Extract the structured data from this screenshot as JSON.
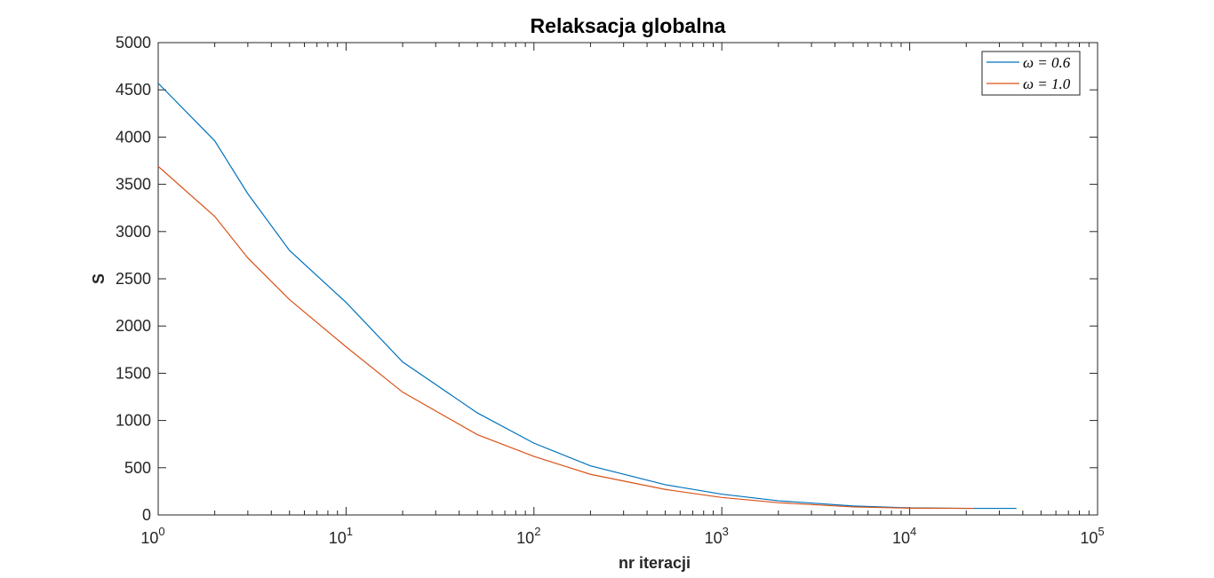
{
  "chart_data": {
    "type": "line",
    "title": "Relaksacja globalna",
    "xlabel": "nr iteracji",
    "ylabel": "S",
    "xscale": "log",
    "xlim": [
      1,
      100000
    ],
    "ylim": [
      0,
      5000
    ],
    "x_ticks": [
      {
        "value": 1,
        "base": "10",
        "exp": "0"
      },
      {
        "value": 10,
        "base": "10",
        "exp": "1"
      },
      {
        "value": 100,
        "base": "10",
        "exp": "2"
      },
      {
        "value": 1000,
        "base": "10",
        "exp": "3"
      },
      {
        "value": 10000,
        "base": "10",
        "exp": "4"
      },
      {
        "value": 100000,
        "base": "10",
        "exp": "5"
      }
    ],
    "y_ticks": [
      0,
      500,
      1000,
      1500,
      2000,
      2500,
      3000,
      3500,
      4000,
      4500,
      5000
    ],
    "grid": false,
    "legend_position": "top-right",
    "series": [
      {
        "name": "ω = 0.6",
        "color": "#0072BD",
        "x": [
          1,
          2,
          3,
          5,
          10,
          20,
          50,
          100,
          200,
          500,
          1000,
          2000,
          5000,
          10000,
          20000,
          37000
        ],
        "y": [
          4570,
          3960,
          3400,
          2800,
          2250,
          1620,
          1080,
          760,
          520,
          320,
          220,
          150,
          95,
          75,
          70,
          70
        ]
      },
      {
        "name": "ω = 1.0",
        "color": "#D95319",
        "x": [
          1,
          2,
          3,
          5,
          10,
          20,
          50,
          100,
          200,
          500,
          1000,
          2000,
          5000,
          10000,
          22000
        ],
        "y": [
          3690,
          3160,
          2720,
          2280,
          1780,
          1300,
          850,
          620,
          430,
          270,
          185,
          130,
          85,
          72,
          70
        ]
      }
    ]
  }
}
